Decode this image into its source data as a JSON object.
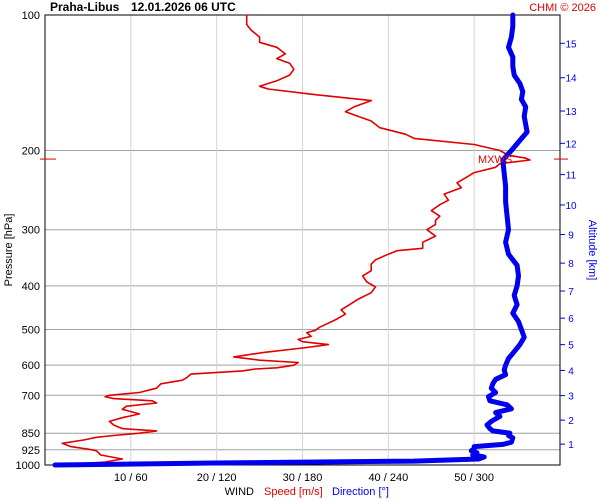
{
  "chart_data": {
    "type": "line",
    "title": "Praha-Libus",
    "datetime": "12.01.2026 06 UTC",
    "credit": "CHMI © 2026",
    "y_axis_left": {
      "label": "Pressure [hPa]",
      "scale": "log",
      "range": [
        1000,
        100
      ],
      "ticks": [
        100,
        200,
        300,
        400,
        500,
        600,
        700,
        850,
        925,
        1000
      ]
    },
    "y_axis_right": {
      "label": "Altitude [km]",
      "ticks": [
        1,
        2,
        3,
        4,
        5,
        6,
        7,
        8,
        9,
        10,
        11,
        12,
        13,
        14,
        15
      ],
      "color": "#0000ee"
    },
    "x_axis": {
      "label_prefix": "WIND",
      "label_speed": "Speed [m/s]",
      "label_direction": "Direction [°]",
      "tick_labels": [
        "10 / 60",
        "20 / 120",
        "30 / 180",
        "40 / 240",
        "50 / 300"
      ],
      "speed_ticks": [
        10,
        20,
        30,
        40,
        50
      ],
      "direction_ticks": [
        60,
        120,
        180,
        240,
        300
      ],
      "speed_range": [
        0,
        60
      ],
      "direction_range": [
        0,
        360
      ],
      "grid": true
    },
    "annotation": {
      "text": "MXWS",
      "pressure": 209,
      "color": "#e00000"
    },
    "series": [
      {
        "name": "Speed [m/s]",
        "color": "#e00000",
        "x_unit": "m/s",
        "points": [
          [
            1000,
            1.5
          ],
          [
            985,
            7
          ],
          [
            970,
            9
          ],
          [
            950,
            6.5
          ],
          [
            930,
            6
          ],
          [
            925,
            5.5
          ],
          [
            910,
            3
          ],
          [
            895,
            2
          ],
          [
            880,
            4.5
          ],
          [
            868,
            6
          ],
          [
            860,
            8
          ],
          [
            850,
            11
          ],
          [
            840,
            13
          ],
          [
            830,
            9
          ],
          [
            815,
            8
          ],
          [
            800,
            7.5
          ],
          [
            785,
            9
          ],
          [
            770,
            11
          ],
          [
            752,
            9
          ],
          [
            740,
            9.5
          ],
          [
            728,
            13
          ],
          [
            720,
            12.5
          ],
          [
            712,
            8
          ],
          [
            705,
            7
          ],
          [
            700,
            7.5
          ],
          [
            690,
            11
          ],
          [
            675,
            13
          ],
          [
            660,
            13.5
          ],
          [
            648,
            16
          ],
          [
            640,
            16.5
          ],
          [
            628,
            17
          ],
          [
            618,
            23
          ],
          [
            612,
            24.5
          ],
          [
            608,
            27
          ],
          [
            600,
            29
          ],
          [
            592,
            29.5
          ],
          [
            585,
            25
          ],
          [
            575,
            22
          ],
          [
            562,
            25.5
          ],
          [
            548,
            30.5
          ],
          [
            540,
            33
          ],
          [
            532,
            30
          ],
          [
            526,
            29.5
          ],
          [
            518,
            31
          ],
          [
            508,
            30.5
          ],
          [
            502,
            31.5
          ],
          [
            494,
            32
          ],
          [
            484,
            33
          ],
          [
            474,
            34
          ],
          [
            462,
            35
          ],
          [
            452,
            34.5
          ],
          [
            440,
            35.5
          ],
          [
            428,
            36.5
          ],
          [
            414,
            38
          ],
          [
            402,
            38.5
          ],
          [
            392,
            37.5
          ],
          [
            380,
            37
          ],
          [
            370,
            38
          ],
          [
            358,
            38
          ],
          [
            350,
            38.5
          ],
          [
            340,
            40
          ],
          [
            334,
            41
          ],
          [
            330,
            44
          ],
          [
            324,
            44
          ],
          [
            320,
            44
          ],
          [
            310,
            45.5
          ],
          [
            300,
            44.5
          ],
          [
            292,
            45.5
          ],
          [
            286,
            45.5
          ],
          [
            280,
            46
          ],
          [
            272,
            45
          ],
          [
            264,
            46
          ],
          [
            258,
            47
          ],
          [
            250,
            46.5
          ],
          [
            242,
            48.5
          ],
          [
            236,
            48
          ],
          [
            230,
            49
          ],
          [
            224,
            50
          ],
          [
            218,
            52.5
          ],
          [
            214,
            53
          ],
          [
            210,
            56.5
          ],
          [
            208,
            56
          ],
          [
            205,
            54
          ],
          [
            200,
            53
          ],
          [
            194,
            50
          ],
          [
            188,
            43
          ],
          [
            184,
            42
          ],
          [
            178,
            39
          ],
          [
            172,
            38
          ],
          [
            164,
            35
          ],
          [
            160,
            36
          ],
          [
            155,
            38
          ],
          [
            150,
            31
          ],
          [
            146,
            26
          ],
          [
            144,
            25
          ],
          [
            140,
            27
          ],
          [
            136,
            28.5
          ],
          [
            132,
            29
          ],
          [
            128,
            28.5
          ],
          [
            125,
            27
          ],
          [
            122,
            28
          ],
          [
            118,
            27
          ],
          [
            115,
            25
          ],
          [
            112,
            25
          ],
          [
            108,
            24
          ],
          [
            105,
            23.5
          ],
          [
            100,
            23.5
          ]
        ]
      },
      {
        "name": "Direction [°]",
        "color": "#0000ee",
        "x_unit": "deg",
        "points": [
          [
            1000,
            7
          ],
          [
            990,
            118
          ],
          [
            980,
            258
          ],
          [
            970,
            303
          ],
          [
            960,
            307
          ],
          [
            950,
            299
          ],
          [
            940,
            302
          ],
          [
            930,
            298
          ],
          [
            920,
            300
          ],
          [
            910,
            300
          ],
          [
            900,
            320
          ],
          [
            890,
            326
          ],
          [
            870,
            327
          ],
          [
            860,
            324
          ],
          [
            850,
            325
          ],
          [
            840,
            313
          ],
          [
            830,
            311
          ],
          [
            815,
            309
          ],
          [
            800,
            312
          ],
          [
            780,
            318
          ],
          [
            765,
            315
          ],
          [
            750,
            326
          ],
          [
            735,
            323
          ],
          [
            720,
            311
          ],
          [
            705,
            310
          ],
          [
            690,
            315
          ],
          [
            675,
            312
          ],
          [
            660,
            313
          ],
          [
            645,
            315
          ],
          [
            630,
            322
          ],
          [
            615,
            321
          ],
          [
            600,
            322
          ],
          [
            580,
            324
          ],
          [
            560,
            328
          ],
          [
            540,
            332
          ],
          [
            520,
            335
          ],
          [
            500,
            333
          ],
          [
            480,
            331
          ],
          [
            460,
            327
          ],
          [
            440,
            330
          ],
          [
            420,
            328
          ],
          [
            400,
            330
          ],
          [
            380,
            331
          ],
          [
            360,
            330
          ],
          [
            340,
            324
          ],
          [
            320,
            322
          ],
          [
            300,
            324
          ],
          [
            280,
            323
          ],
          [
            260,
            322
          ],
          [
            240,
            322
          ],
          [
            225,
            321
          ],
          [
            210,
            320
          ],
          [
            200,
            326
          ],
          [
            190,
            332
          ],
          [
            182,
            337
          ],
          [
            175,
            336
          ],
          [
            168,
            335
          ],
          [
            160,
            336
          ],
          [
            154,
            333
          ],
          [
            148,
            334
          ],
          [
            142,
            332
          ],
          [
            136,
            328
          ],
          [
            130,
            327
          ],
          [
            124,
            327
          ],
          [
            118,
            324
          ],
          [
            112,
            326
          ],
          [
            106,
            327
          ],
          [
            100,
            327
          ]
        ]
      }
    ]
  }
}
